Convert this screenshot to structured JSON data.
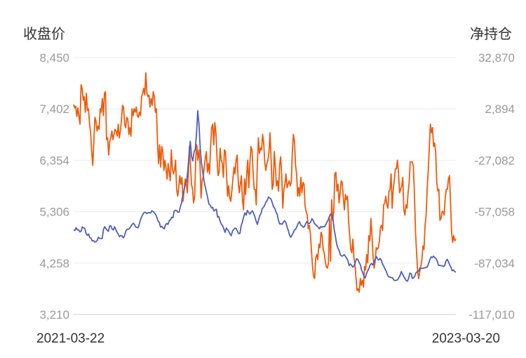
{
  "chart_data": {
    "type": "line",
    "y_left_title": "收盘价",
    "y_right_title": "净持仓",
    "y_left_ticks": [
      "8,450",
      "7,402",
      "6,354",
      "5,306",
      "4,258",
      "3,210"
    ],
    "y_right_ticks": [
      "32,870",
      "2,894",
      "-27,082",
      "-57,058",
      "-87,034",
      "-117,010"
    ],
    "y_left_range": [
      3210,
      8450
    ],
    "y_right_range": [
      -117010,
      32870
    ],
    "x_start_label": "2021-03-22",
    "x_end_label": "2023-03-20",
    "grid": true,
    "series": [
      {
        "axis": "right",
        "color": "#f05a0a",
        "values": [
          5500,
          3500,
          4500,
          -1500,
          3500,
          -1500,
          -6000,
          17000,
          15000,
          8000,
          10000,
          1000,
          12000,
          2000,
          3000,
          -6000,
          -11000,
          -22000,
          -30000,
          -17000,
          -2000,
          -4000,
          -10000,
          -7000,
          -9000,
          3000,
          1000,
          9000,
          -1000,
          12000,
          13000,
          -15000,
          -14000,
          -24000,
          -16000,
          -14000,
          -10000,
          -15000,
          -12000,
          -9000,
          -10000,
          -13000,
          -6000,
          -14000,
          -10000,
          -4000,
          5000,
          4000,
          -6000,
          -8000,
          -2000,
          -3000,
          -12000,
          -8000,
          -13000,
          3000,
          -1000,
          3000,
          1000,
          4000,
          -1000,
          -2000,
          1000,
          -1000,
          10000,
          12000,
          15000,
          11000,
          24000,
          12000,
          10000,
          11000,
          4000,
          9000,
          5000,
          13000,
          10000,
          1000,
          3000,
          -17000,
          -29000,
          -18000,
          -31000,
          -19000,
          -22000,
          -33000,
          -27000,
          -32000,
          -38000,
          -29000,
          -34000,
          -39000,
          -21000,
          -32000,
          -35000,
          -33000,
          -27000,
          -44000,
          -48000,
          -43000,
          -36000,
          -41000,
          -37000,
          -51000,
          -45000,
          -38000,
          -40000,
          -46000,
          -36000,
          -19000,
          -29000,
          -41000,
          -44000,
          -52000,
          -48000,
          -26000,
          -18000,
          -27000,
          -21000,
          -29000,
          -49000,
          -39000,
          -37000,
          -31000,
          -26000,
          -22000,
          -34000,
          -29000,
          -35000,
          -19000,
          -8000,
          -6000,
          -18000,
          -5000,
          -11000,
          -25000,
          -36000,
          -34000,
          -20000,
          -27000,
          -29000,
          -37000,
          -21000,
          -22000,
          -35000,
          -48000,
          -42000,
          -49000,
          -51000,
          -45000,
          -38000,
          -31000,
          -35000,
          -27000,
          -24000,
          -39000,
          -46000,
          -41000,
          -36000,
          -50000,
          -56000,
          -38000,
          -47000,
          -35000,
          -27000,
          -43000,
          -29000,
          -19000,
          -21000,
          -34000,
          -44000,
          -44000,
          -53000,
          -30000,
          -14000,
          -23000,
          -20000,
          -21000,
          -12000,
          -17000,
          -28000,
          -33000,
          -29000,
          -27000,
          -22000,
          -11000,
          -27000,
          -44000,
          -41000,
          -22000,
          -31000,
          -42000,
          -39000,
          -45000,
          -30000,
          -25000,
          -36000,
          -55000,
          -44000,
          -41000,
          -35000,
          -43000,
          -41000,
          -39000,
          -42000,
          -40000,
          -22000,
          -12000,
          -16000,
          -30000,
          -35000,
          -48000,
          -43000,
          -48000,
          -37000,
          -46000,
          -40000,
          -41000,
          -54000,
          -57000,
          -59000,
          -67000,
          -65000,
          -70000,
          -80000,
          -89000,
          -95000,
          -96000,
          -84000,
          -82000,
          -85000,
          -76000,
          -78000,
          -69000,
          -71000,
          -79000,
          -81000,
          -86000,
          -89000,
          -90000,
          -87000,
          -61000,
          -86000,
          -50000,
          -62000,
          -57000,
          -35000,
          -34000,
          -45000,
          -41000,
          -52000,
          -46000,
          -39000,
          -40000,
          -49000,
          -56000,
          -47000,
          -50000,
          -48000,
          -63000,
          -71000,
          -79000,
          -81000,
          -73000,
          -84000,
          -88000,
          -96000,
          -103000,
          -102000,
          -104000,
          -96000,
          -100000,
          -97000,
          -101000,
          -89000,
          -91000,
          -82000,
          -87000,
          -71000,
          -74000,
          -61000,
          -71000,
          -83000,
          -90000,
          -86000,
          -78000,
          -79000,
          -78000,
          -74000,
          -66000,
          -65000,
          -68000,
          -53000,
          -52000,
          -48000,
          -53000,
          -55000,
          -45000,
          -44000,
          -35000,
          -55000,
          -44000,
          -39000,
          -32000,
          -32000,
          -27000,
          -35000,
          -46000,
          -44000,
          -42000,
          -37000,
          -56000,
          -59000,
          -53000,
          -55000,
          -46000,
          -40000,
          -28000,
          -28000,
          -28000,
          -31000,
          -47000,
          -69000,
          -81000,
          -92000,
          -96000,
          -92000,
          -89000,
          -85000,
          -77000,
          -79000,
          -65000,
          -59000,
          -43000,
          -33000,
          -19000,
          -6000,
          -11000,
          -8000,
          -19000,
          -17000,
          -22000,
          -40000,
          -45000,
          -44000,
          -62000,
          -61000,
          -57000,
          -57000,
          -59000,
          -49000,
          -44000,
          -44000,
          -38000,
          -36000,
          -52000,
          -69000,
          -75000,
          -71000,
          -74000,
          -73000
        ]
      },
      {
        "axis": "left",
        "color": "#4c5fbd",
        "values": [
          4935,
          4924,
          4981,
          4936,
          4937,
          4897,
          4909,
          4996,
          4978,
          4964,
          4865,
          4823,
          4850,
          4780,
          4767,
          4712,
          4717,
          4685,
          4696,
          4722,
          4786,
          4761,
          4760,
          4760,
          4941,
          5001,
          4958,
          4931,
          4906,
          5013,
          5017,
          4954,
          4934,
          5000,
          4940,
          4886,
          4846,
          4797,
          4822,
          4811,
          4773,
          4820,
          4907,
          4950,
          4948,
          4962,
          5001,
          5043,
          5070,
          5047,
          4994,
          4984,
          4980,
          5061,
          5152,
          5212,
          5264,
          5293,
          5293,
          5268,
          5287,
          5285,
          5278,
          5325,
          5309,
          5285,
          5253,
          5195,
          5118,
          5091,
          4993,
          5009,
          4977,
          4955,
          5038,
          5067,
          5045,
          5121,
          5140,
          5192,
          5183,
          5317,
          5336,
          5329,
          5293,
          5300,
          5408,
          5492,
          5657,
          5756,
          5871,
          5914,
          6148,
          6448,
          6744,
          6435,
          6341,
          6523,
          6580,
          6891,
          7366,
          7090,
          6599,
          6305,
          6124,
          5944,
          5823,
          5709,
          5591,
          5463,
          5440,
          5386,
          5396,
          5322,
          5339,
          5356,
          5196,
          5207,
          5116,
          5050,
          5023,
          4956,
          4884,
          4972,
          4945,
          4906,
          4853,
          4817,
          4911,
          4944,
          4972,
          4962,
          4907,
          4859,
          4863,
          5021,
          5096,
          5199,
          5281,
          5237,
          5332,
          5291,
          5257,
          5294,
          5326,
          5274,
          5208,
          5119,
          5047,
          5135,
          5229,
          5271,
          5372,
          5396,
          5444,
          5501,
          5535,
          5606,
          5584,
          5565,
          5495,
          5411,
          5378,
          5304,
          5253,
          5138,
          5056,
          5061,
          5048,
          5097,
          5122,
          5088,
          4994,
          4921,
          4829,
          4786,
          4833,
          4875,
          4937,
          4953,
          5009,
          5070,
          5103,
          5034,
          5021,
          4987,
          5001,
          5064,
          5105,
          5069,
          5068,
          5097,
          5164,
          5129,
          5066,
          5043,
          5018,
          4992,
          4957,
          5002,
          4989,
          5005,
          4995,
          5034,
          5087,
          5130,
          5205,
          5255,
          5238,
          5155,
          4937,
          4794,
          4641,
          4559,
          4510,
          4422,
          4403,
          4406,
          4431,
          4398,
          4355,
          4308,
          4209,
          4240,
          4210,
          4176,
          4201,
          4283,
          4349,
          4333,
          4275,
          4225,
          4117,
          4059,
          3990,
          3956,
          4045,
          4102,
          4155,
          4221,
          4252,
          4220,
          4260,
          4338,
          4392,
          4335,
          4320,
          4356,
          4308,
          4233,
          4191,
          4132,
          4087,
          4006,
          3978,
          3975,
          3960,
          3959,
          3913,
          3902,
          3906,
          3919,
          3955,
          4004,
          4085,
          4035,
          3984,
          3940,
          3899,
          3889,
          3954,
          4055,
          4040,
          3944,
          3960,
          3998,
          4066,
          4083,
          4092,
          4156,
          4151,
          4149,
          4159,
          4158,
          4175,
          4179,
          4249,
          4327,
          4385,
          4372,
          4401,
          4369,
          4352,
          4296,
          4216,
          4213,
          4205,
          4203,
          4189,
          4209,
          4298,
          4335,
          4286,
          4222,
          4173,
          4103,
          4118,
          4087,
          4071
        ]
      }
    ]
  }
}
